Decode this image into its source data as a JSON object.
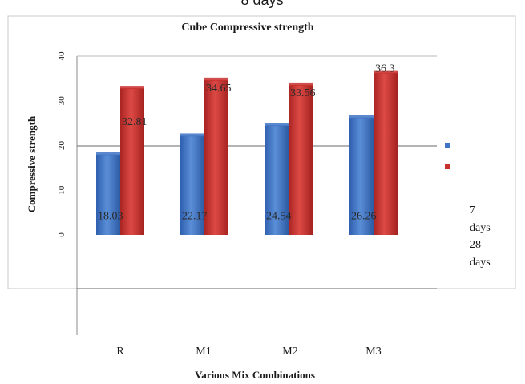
{
  "chart_data": {
    "type": "bar",
    "title": "Cube Compressive strength",
    "top_fragment": "8 days",
    "xlabel": "Various Mix Combinations",
    "ylabel": "Compressive strength",
    "categories": [
      "R",
      "M1",
      "M2",
      "M3"
    ],
    "series": [
      {
        "name": "7 days",
        "values": [
          18.03,
          22.17,
          24.54,
          26.26
        ],
        "labels": [
          "18.03",
          "22.17",
          "24.54",
          "26.26"
        ],
        "color": "#3f74c6"
      },
      {
        "name": "28 days",
        "values": [
          32.81,
          34.65,
          33.56,
          36.3
        ],
        "labels": [
          "32.81",
          "34.65",
          "33.56",
          "36.3"
        ],
        "color": "#c8302e"
      }
    ],
    "ylim": [
      0,
      40
    ],
    "yticks": [
      "0",
      "10",
      "20",
      "30",
      "40"
    ],
    "grid": true,
    "legend_position": "right",
    "legend_lines": [
      "7",
      "days",
      "28",
      "days"
    ]
  }
}
